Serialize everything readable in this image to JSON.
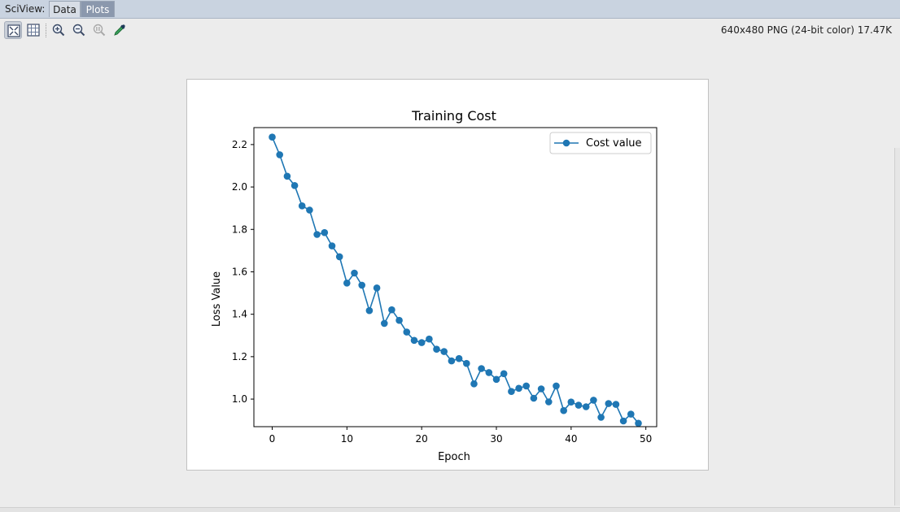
{
  "window": {
    "panel_label": "SciView:",
    "tabs": [
      {
        "label": "Data",
        "active": false
      },
      {
        "label": "Plots",
        "active": true
      }
    ]
  },
  "toolbar": {
    "buttons": [
      {
        "name": "zoom-to-fit",
        "icon": "fit-icon"
      },
      {
        "name": "actual-size",
        "icon": "grid-icon"
      },
      {
        "name": "zoom-in",
        "icon": "zoom-in-icon"
      },
      {
        "name": "zoom-out",
        "icon": "zoom-out-icon"
      },
      {
        "name": "zoom-reset",
        "icon": "zoom-reset-icon"
      },
      {
        "name": "color-picker",
        "icon": "eyedropper-icon"
      }
    ],
    "image_info": "640x480 PNG (24-bit color) 17.47K"
  },
  "colors": {
    "line": "#1f77b4",
    "tab_active": "#8b98ad",
    "tab_bar": "#c9d3e0"
  },
  "chart_data": {
    "type": "line",
    "title": "Training Cost",
    "xlabel": "Epoch",
    "ylabel": "Loss Value",
    "xlim": [
      -2.45,
      51.45
    ],
    "ylim": [
      0.87,
      2.28
    ],
    "xticks": [
      0,
      10,
      20,
      30,
      40,
      50
    ],
    "yticks": [
      1.0,
      1.2,
      1.4,
      1.6,
      1.8,
      2.0,
      2.2
    ],
    "ytick_labels": [
      "1.0",
      "1.2",
      "1.4",
      "1.6",
      "1.8",
      "2.0",
      "2.2"
    ],
    "legend_position": "top-right",
    "marker": "circle",
    "grid": false,
    "series": [
      {
        "name": "Cost value",
        "x": [
          0,
          1,
          2,
          3,
          4,
          5,
          6,
          7,
          8,
          9,
          10,
          11,
          12,
          13,
          14,
          15,
          16,
          17,
          18,
          19,
          20,
          21,
          22,
          23,
          24,
          25,
          26,
          27,
          28,
          29,
          30,
          31,
          32,
          33,
          34,
          35,
          36,
          37,
          38,
          39,
          40,
          41,
          42,
          43,
          44,
          45,
          46,
          47,
          48,
          49
        ],
        "values": [
          2.235,
          2.152,
          2.051,
          2.007,
          1.911,
          1.891,
          1.776,
          1.785,
          1.722,
          1.671,
          1.547,
          1.594,
          1.537,
          1.417,
          1.524,
          1.357,
          1.421,
          1.371,
          1.316,
          1.277,
          1.266,
          1.283,
          1.235,
          1.224,
          1.18,
          1.191,
          1.168,
          1.072,
          1.144,
          1.125,
          1.093,
          1.12,
          1.036,
          1.051,
          1.062,
          1.004,
          1.048,
          0.987,
          1.062,
          0.946,
          0.986,
          0.971,
          0.964,
          0.995,
          0.914,
          0.979,
          0.975,
          0.897,
          0.929,
          0.886
        ]
      }
    ]
  }
}
